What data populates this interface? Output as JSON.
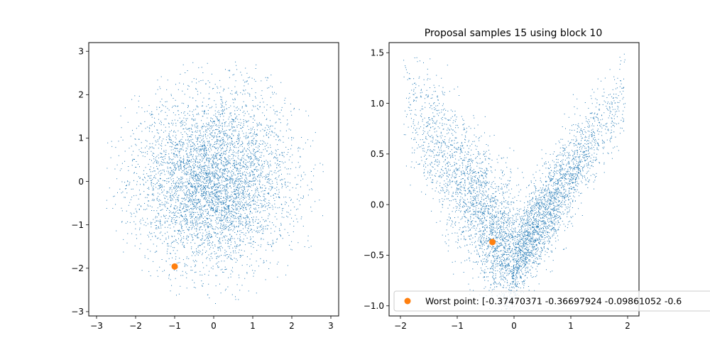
{
  "chart_data": [
    {
      "type": "scatter",
      "title": "",
      "xlabel": "",
      "ylabel": "",
      "xlim": [
        -3.2,
        3.2
      ],
      "ylim": [
        -3.1,
        3.2
      ],
      "xticks": [
        -3,
        -2,
        -1,
        0,
        1,
        2,
        3
      ],
      "yticks": [
        -3,
        -2,
        -1,
        0,
        1,
        2,
        3
      ],
      "grid": false,
      "series": [
        {
          "kind": "sample-cloud",
          "n": 5000,
          "distribution": "standard normal, radius ≤ 2.9",
          "marker": "pixel",
          "color": "#1f77b4"
        },
        {
          "kind": "highlight-point",
          "x": -1.0,
          "y": -1.96,
          "marker": "circle",
          "color": "#ff7f0e"
        }
      ]
    },
    {
      "type": "scatter",
      "title": "Proposal samples 15 using block 10",
      "xlabel": "",
      "ylabel": "",
      "xlim": [
        -2.2,
        2.2
      ],
      "ylim": [
        -1.1,
        1.6
      ],
      "xticks": [
        -2,
        -1,
        0,
        1,
        2
      ],
      "yticks": [
        -1.0,
        -0.5,
        0.0,
        0.5,
        1.0,
        1.5
      ],
      "grid": false,
      "legend_position": "lower-left",
      "series": [
        {
          "kind": "sample-cloud",
          "n": 5000,
          "distribution": "V-shaped cloud, apex near (0, -0.9), arms to (-1.9, 1.4) and (1.9, 1.45)",
          "marker": "pixel",
          "color": "#1f77b4"
        },
        {
          "kind": "highlight-point",
          "name": "Worst point: [-0.37470371 -0.36697924 -0.09861052 -0.6",
          "x": -0.38,
          "y": -0.37,
          "marker": "circle",
          "color": "#ff7f0e"
        }
      ]
    }
  ]
}
